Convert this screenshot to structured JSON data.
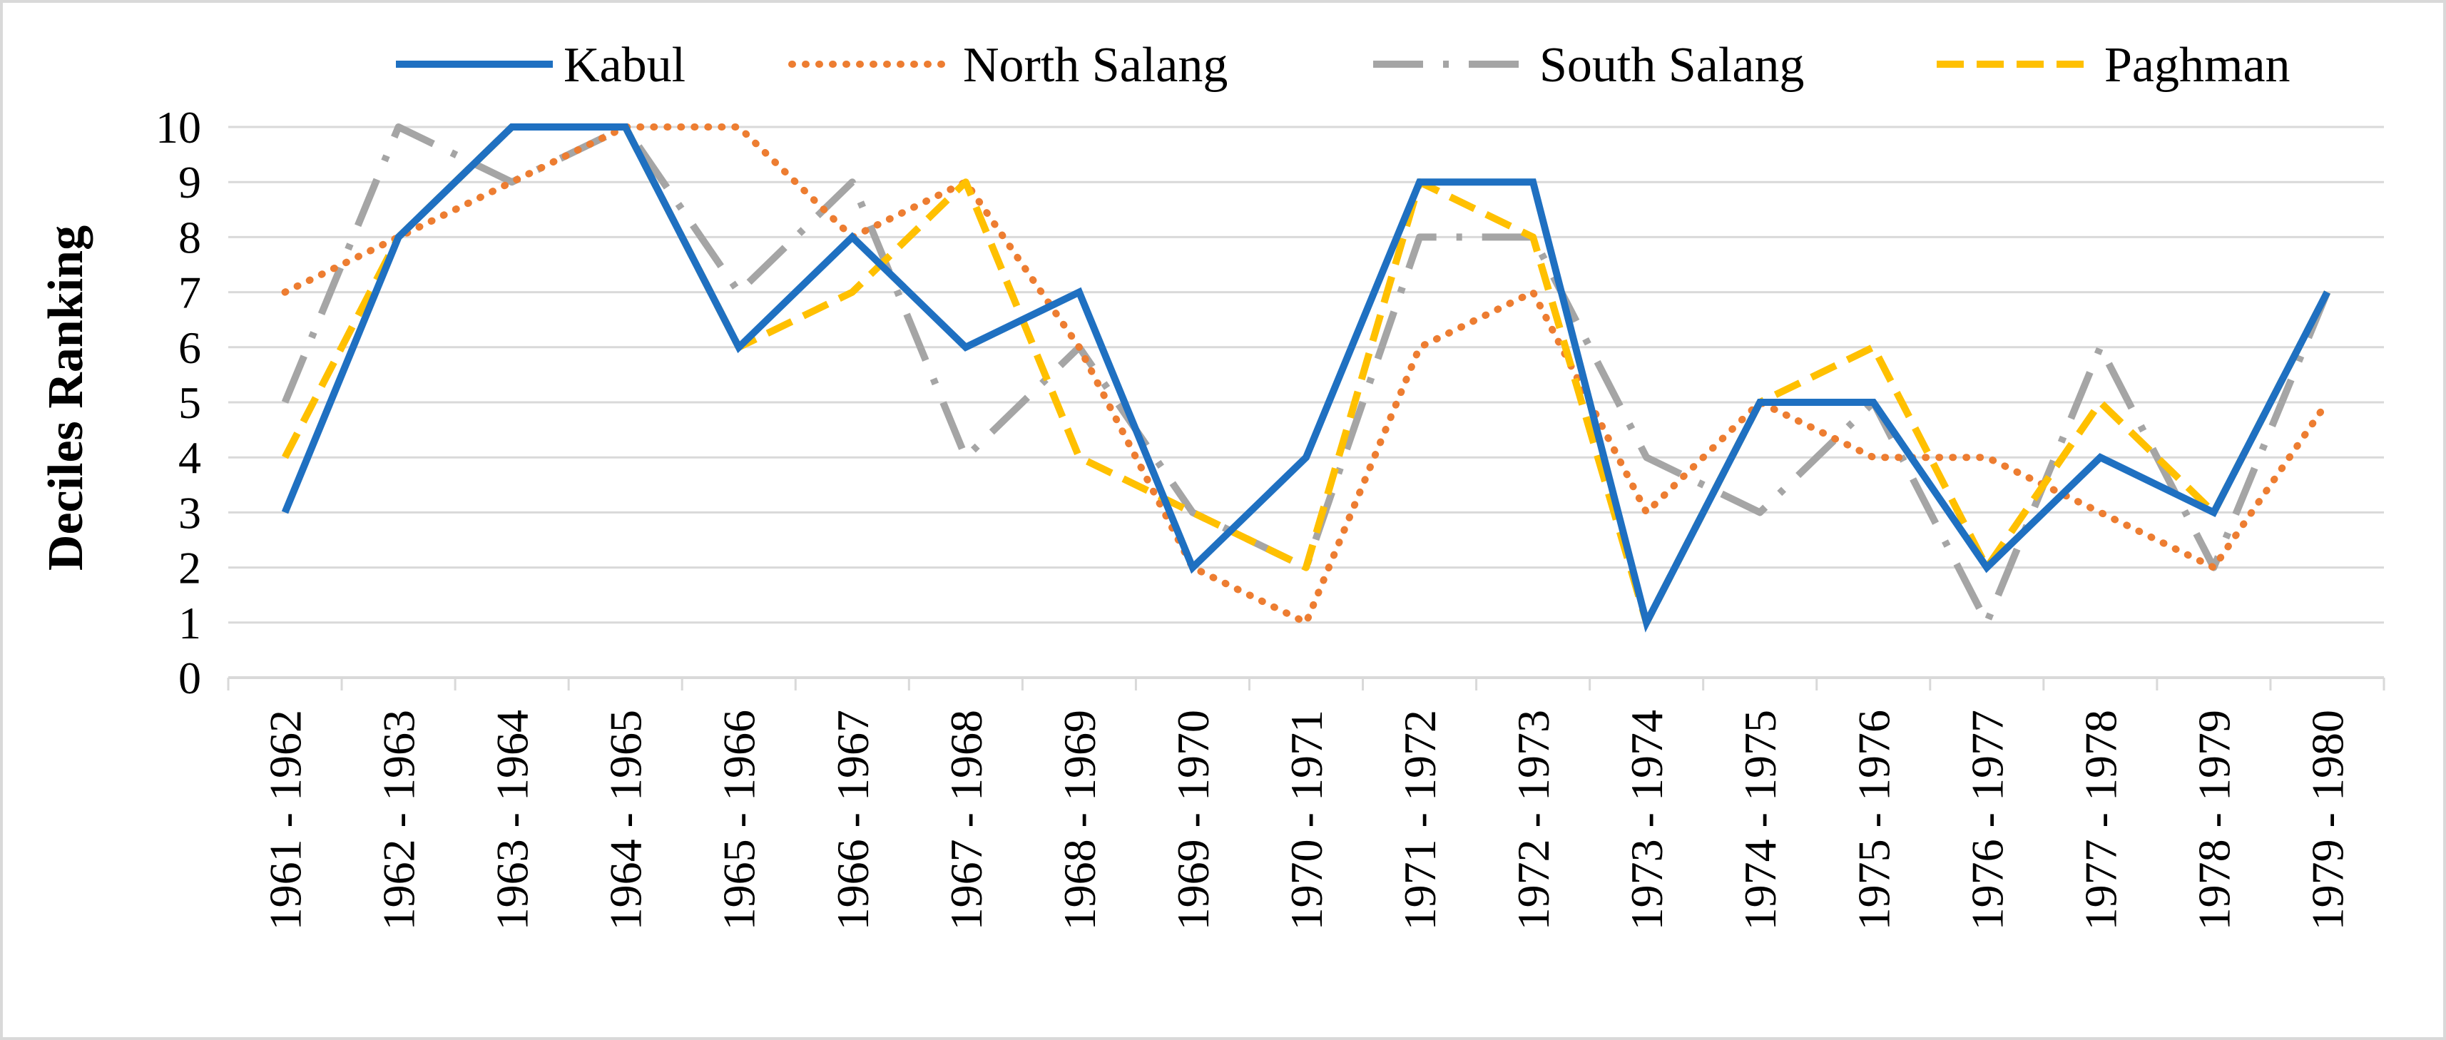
{
  "chart_data": {
    "type": "line",
    "title": "",
    "xlabel": "",
    "ylabel": "Deciles Ranking",
    "ylim": [
      0,
      10
    ],
    "yticks": [
      "0",
      "1",
      "2",
      "3",
      "4",
      "5",
      "6",
      "7",
      "8",
      "9",
      "10"
    ],
    "grid": true,
    "legend_position": "top",
    "categories": [
      "1961 - 1962",
      "1962 - 1963",
      "1963 - 1964",
      "1964 - 1965",
      "1965 - 1966",
      "1966 - 1967",
      "1967 - 1968",
      "1968 - 1969",
      "1969 - 1970",
      "1970 - 1971",
      "1971 - 1972",
      "1972 - 1973",
      "1973 - 1974",
      "1974 - 1975",
      "1975 - 1976",
      "1976 - 1977",
      "1977 - 1978",
      "1978 - 1979",
      "1979 - 1980"
    ],
    "series": [
      {
        "name": "Kabul",
        "color": "#1f70c1",
        "style": "solid",
        "values": [
          3,
          8,
          10,
          10,
          6,
          8,
          6,
          7,
          2,
          4,
          9,
          9,
          1,
          5,
          5,
          2,
          4,
          3,
          7
        ]
      },
      {
        "name": "North Salang",
        "color": "#ed7d31",
        "style": "dotted",
        "values": [
          7,
          8,
          9,
          10,
          10,
          8,
          9,
          6,
          2,
          1,
          6,
          7,
          3,
          5,
          4,
          4,
          3,
          2,
          5
        ]
      },
      {
        "name": "South Salang",
        "color": "#a5a5a5",
        "style": "dashdot",
        "values": [
          5,
          10,
          9,
          10,
          7,
          9,
          4,
          6,
          3,
          2,
          8,
          8,
          4,
          3,
          5,
          1,
          6,
          2,
          7
        ]
      },
      {
        "name": "Paghman",
        "color": "#ffc000",
        "style": "dashed",
        "values": [
          4,
          8,
          10,
          10,
          6,
          7,
          9,
          4,
          3,
          2,
          9,
          8,
          1,
          5,
          6,
          2,
          5,
          3,
          7
        ]
      }
    ]
  }
}
